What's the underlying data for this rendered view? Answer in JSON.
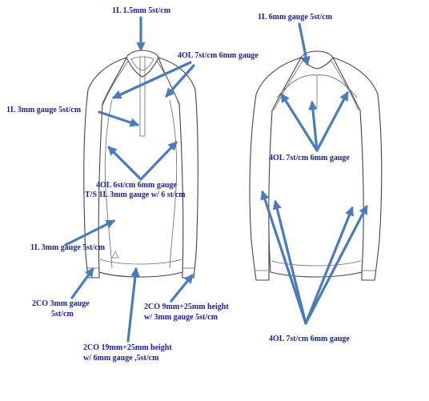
{
  "labels": {
    "top_front": "1L  1.5mm 5st/cm",
    "shoulder_front": "4OL 7st/cm 6mm gauge",
    "collar_front": "1L  3mm gauge  5st/cm",
    "panel_front_1": "4OL 6st/cm 6mm gauge",
    "panel_front_2": "T/S  1L 3mm gauge w/ 6 st/cm",
    "hem_body_front": "1L  3mm gauge  5st/cm",
    "cuff_front_1": "2CO 3mm gauge",
    "cuff_front_2": "5st/cm",
    "cuff_front_r_1": "2CO 9mm+25mm height",
    "cuff_front_r_2": "w/ 3mm gauge 5st/cm",
    "hem_front_1": "2CO 19mm+25mm height",
    "hem_front_2": "w/ 6mm gauge ,5st/cm",
    "top_back": "1L  6mm gauge  5st/cm",
    "yoke_back": "4OL 7st/cm 6mm gauge",
    "sleeve_back": "4OL 7st/cm 6mm gauge"
  }
}
